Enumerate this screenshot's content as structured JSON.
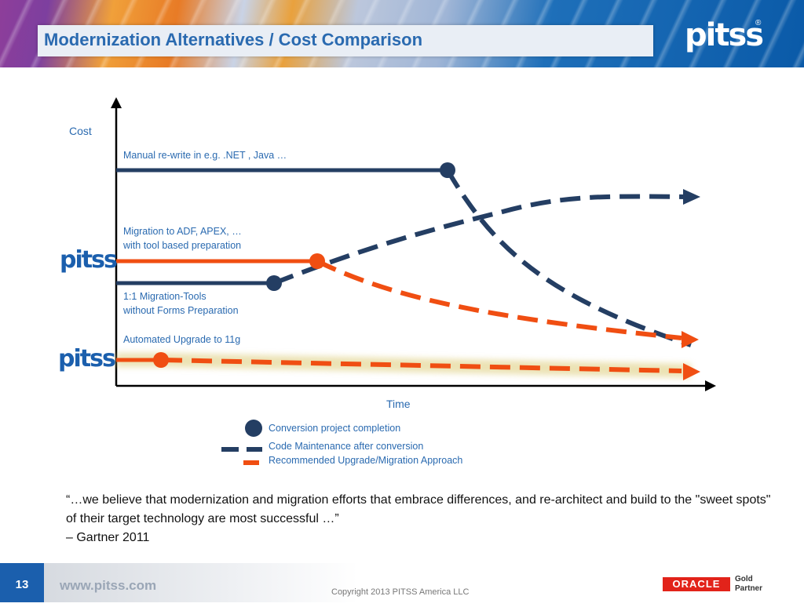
{
  "slide": {
    "title": "Modernization Alternatives / Cost Comparison",
    "logo_text": "pitss",
    "logo_reg": "®",
    "page_number": "13",
    "website": "www.pitss.com",
    "copyright": "Copyright 2013 PITSS America LLC",
    "oracle_text": "ORACLE",
    "partner_line1": "Gold",
    "partner_line2": "Partner"
  },
  "diagram": {
    "y_axis_label": "Cost",
    "x_axis_label": "Time",
    "labels": {
      "manual_rewrite": "Manual re-write in e.g.  .NET , Java …",
      "migration_adf_1": "Migration to ADF, APEX, …",
      "migration_adf_2": "with tool based preparation",
      "migration_tools_1": "1:1 Migration-Tools",
      "migration_tools_2": "without  Forms  Preparation",
      "automated_upgrade": "Automated Upgrade to 11g"
    },
    "side_logos": [
      "pitss",
      "pitss"
    ],
    "colors": {
      "navy": "#243e63",
      "orange": "#f04e12",
      "blue_text": "#2a6ab0"
    }
  },
  "legend": {
    "completion": "Conversion project completion",
    "maintenance": "Code Maintenance after conversion",
    "recommended": "Recommended Upgrade/Migration Approach"
  },
  "quote": {
    "line1": "“…we believe that modernization and migration efforts that embrace differences, and re-architect and build to the \"sweet spots\" of their target technology are most successful …”",
    "line2": "– Gartner 2011"
  }
}
